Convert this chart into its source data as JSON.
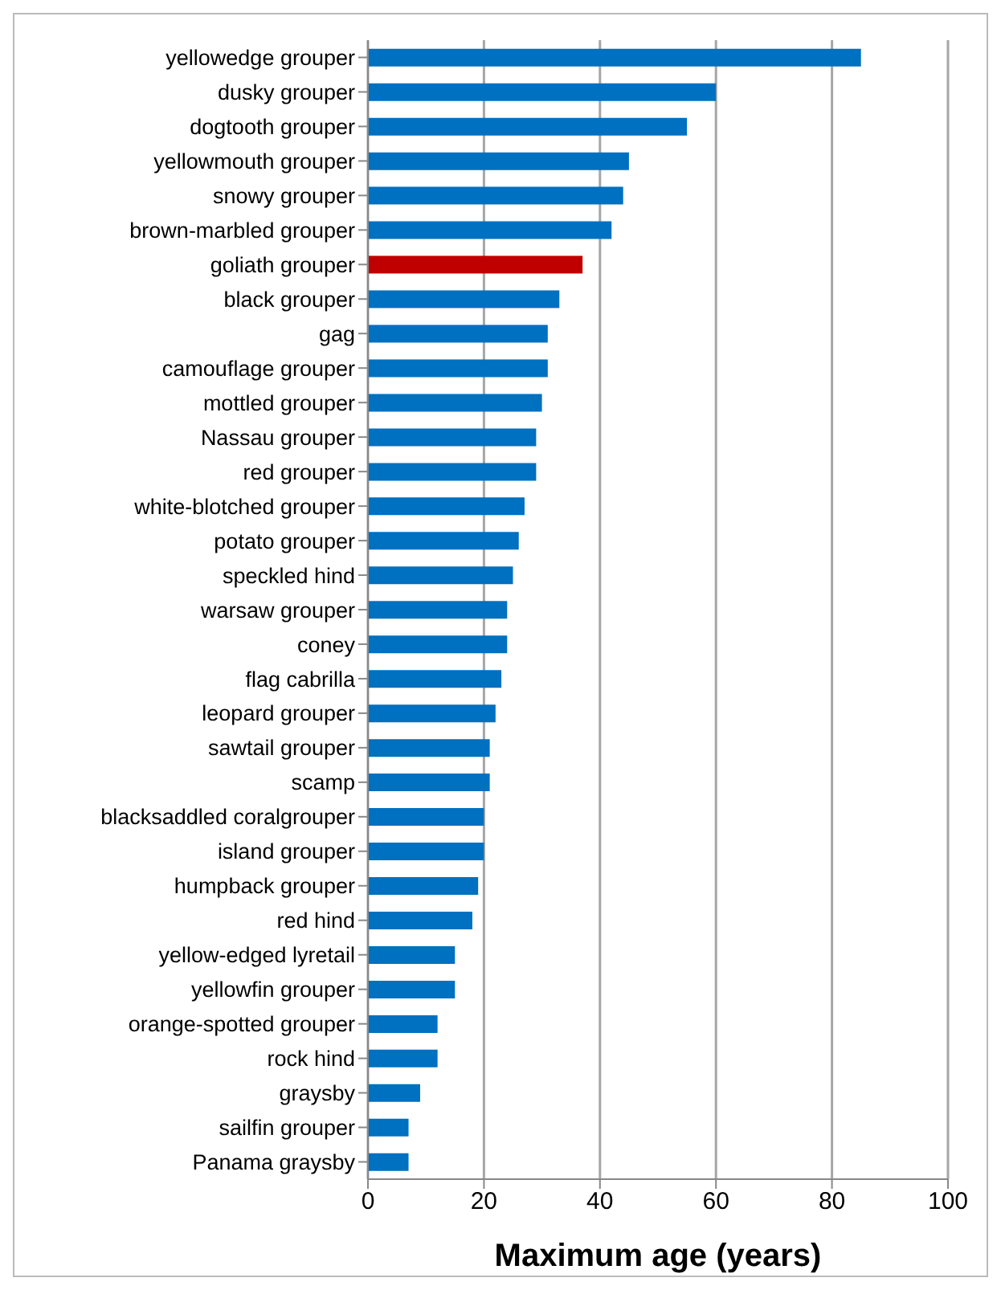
{
  "chart_data": {
    "type": "bar",
    "orientation": "horizontal",
    "xlabel": "Maximum age (years)",
    "categories": [
      "yellowedge grouper",
      "dusky grouper",
      "dogtooth grouper",
      "yellowmouth grouper",
      "snowy grouper",
      "brown-marbled grouper",
      "goliath grouper",
      "black grouper",
      "gag",
      "camouflage grouper",
      "mottled grouper",
      "Nassau grouper",
      "red grouper",
      "white-blotched grouper",
      "potato grouper",
      "speckled hind",
      "warsaw grouper",
      "coney",
      "flag cabrilla",
      "leopard grouper",
      "sawtail grouper",
      "scamp",
      "blacksaddled coralgrouper",
      "island grouper",
      "humpback grouper",
      "red hind",
      "yellow-edged lyretail",
      "yellowfin grouper",
      "orange-spotted grouper",
      "rock hind",
      "graysby",
      "sailfin grouper",
      "Panama graysby"
    ],
    "values": [
      85,
      60,
      55,
      45,
      44,
      42,
      37,
      33,
      31,
      31,
      30,
      29,
      29,
      27,
      26,
      25,
      24,
      24,
      23,
      22,
      21,
      21,
      20,
      20,
      19,
      18,
      15,
      15,
      12,
      12,
      9,
      7,
      7
    ],
    "colors": [
      "#0070c0",
      "#0070c0",
      "#0070c0",
      "#0070c0",
      "#0070c0",
      "#0070c0",
      "#c00000",
      "#0070c0",
      "#0070c0",
      "#0070c0",
      "#0070c0",
      "#0070c0",
      "#0070c0",
      "#0070c0",
      "#0070c0",
      "#0070c0",
      "#0070c0",
      "#0070c0",
      "#0070c0",
      "#0070c0",
      "#0070c0",
      "#0070c0",
      "#0070c0",
      "#0070c0",
      "#0070c0",
      "#0070c0",
      "#0070c0",
      "#0070c0",
      "#0070c0",
      "#0070c0",
      "#0070c0",
      "#0070c0",
      "#0070c0"
    ],
    "xlim": [
      0,
      100
    ],
    "xticks": [
      0,
      20,
      40,
      60,
      80,
      100
    ],
    "grid": "x",
    "legend": false
  }
}
